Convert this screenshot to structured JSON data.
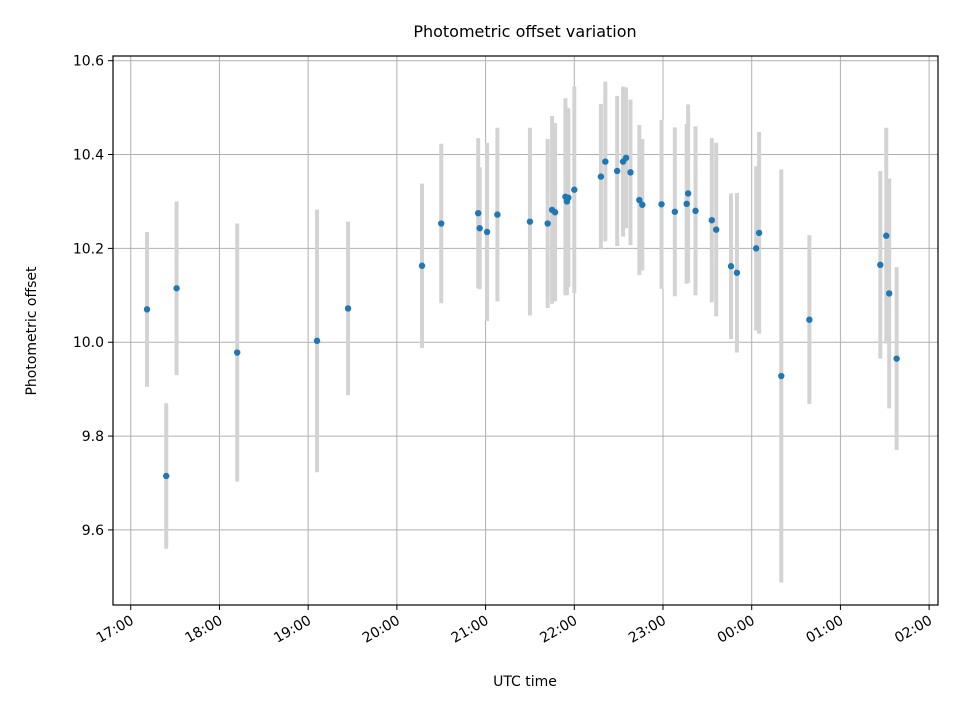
{
  "chart_data": {
    "type": "scatter",
    "title": "Photometric offset variation",
    "xlabel": "UTC time",
    "ylabel": "Photometric offset",
    "x_ticks": [
      "17:00",
      "18:00",
      "19:00",
      "20:00",
      "21:00",
      "22:00",
      "23:00",
      "00:00",
      "01:00",
      "02:00"
    ],
    "y_ticks": [
      "9.6",
      "9.8",
      "10.0",
      "10.2",
      "10.4",
      "10.6"
    ],
    "xlim_hours": [
      16.8,
      26.1
    ],
    "ylim": [
      9.44,
      10.61
    ],
    "grid": true,
    "colors": {
      "point": "#1f77b4",
      "errorbar": "#d3d3d3",
      "grid": "#b0b0b0"
    },
    "series": [
      {
        "x": [
          "17:11",
          "17:24",
          "17:31",
          "18:12",
          "19:06",
          "19:27",
          "20:17",
          "20:30",
          "20:55",
          "20:56",
          "21:01",
          "21:08",
          "21:30",
          "21:42",
          "21:45",
          "21:47",
          "21:54",
          "21:55",
          "21:56",
          "22:00",
          "22:18",
          "22:21",
          "22:29",
          "22:33",
          "22:35",
          "22:38",
          "22:44",
          "22:46",
          "22:59",
          "23:08",
          "23:16",
          "23:17",
          "23:22",
          "23:33",
          "23:36",
          "23:46",
          "23:50",
          "00:03",
          "00:05",
          "00:20",
          "00:39",
          "01:27",
          "01:31",
          "01:33",
          "01:38"
        ],
        "y": [
          10.07,
          9.715,
          10.115,
          9.978,
          10.003,
          10.072,
          10.163,
          10.253,
          10.275,
          10.243,
          10.235,
          10.272,
          10.257,
          10.253,
          10.282,
          10.277,
          10.31,
          10.3,
          10.308,
          10.325,
          10.353,
          10.385,
          10.365,
          10.385,
          10.393,
          10.362,
          10.303,
          10.293,
          10.294,
          10.278,
          10.295,
          10.317,
          10.28,
          10.26,
          10.24,
          10.162,
          10.148,
          10.2,
          10.233,
          9.928,
          10.048,
          10.165,
          10.227,
          10.104,
          9.965
        ],
        "err": [
          0.165,
          0.155,
          0.185,
          0.275,
          0.28,
          0.185,
          0.175,
          0.17,
          0.16,
          0.13,
          0.19,
          0.185,
          0.2,
          0.18,
          0.2,
          0.19,
          0.21,
          0.2,
          0.19,
          0.22,
          0.155,
          0.17,
          0.16,
          0.16,
          0.15,
          0.155,
          0.16,
          0.14,
          0.18,
          0.18,
          0.17,
          0.19,
          0.18,
          0.175,
          0.185,
          0.155,
          0.17,
          0.175,
          0.215,
          0.44,
          0.18,
          0.2,
          0.23,
          0.245,
          0.195
        ]
      }
    ]
  }
}
